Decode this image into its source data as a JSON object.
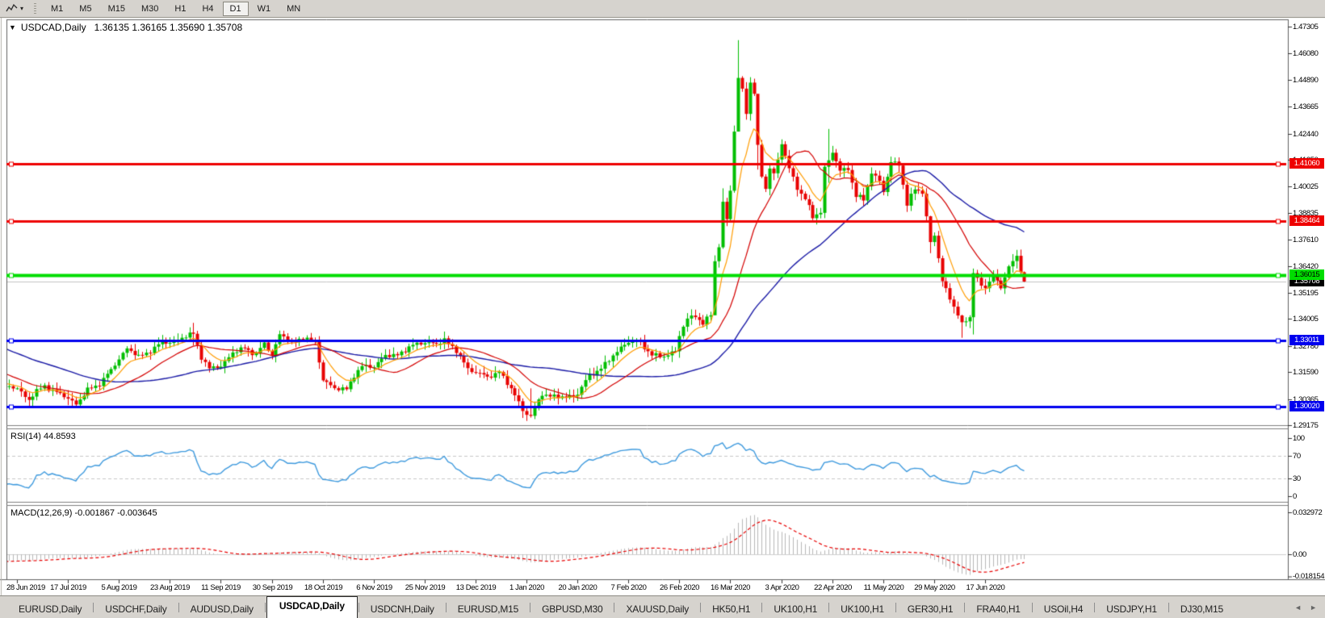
{
  "toolbar": {
    "dropdown_icon": "▾",
    "timeframes": [
      "M1",
      "M5",
      "M15",
      "M30",
      "H1",
      "H4",
      "D1",
      "W1",
      "MN"
    ],
    "active_timeframe": "D1"
  },
  "chart_header": {
    "collapse_icon": "▼",
    "symbol": "USDCAD,Daily",
    "ohlc": "1.36135 1.36165 1.35690 1.35708"
  },
  "price_axis": {
    "ticks": [
      "1.47305",
      "1.46080",
      "1.44890",
      "1.43665",
      "1.42440",
      "1.41250",
      "1.40025",
      "1.38835",
      "1.37610",
      "1.36420",
      "1.35195",
      "1.34005",
      "1.32780",
      "1.31590",
      "1.30365",
      "1.29175"
    ]
  },
  "x_axis": {
    "dates": [
      "28 Jun 2019",
      "17 Jul 2019",
      "5 Aug 2019",
      "23 Aug 2019",
      "11 Sep 2019",
      "30 Sep 2019",
      "18 Oct 2019",
      "6 Nov 2019",
      "25 Nov 2019",
      "13 Dec 2019",
      "1 Jan 2020",
      "20 Jan 2020",
      "7 Feb 2020",
      "26 Feb 2020",
      "16 Mar 2020",
      "3 Apr 2020",
      "22 Apr 2020",
      "11 May 2020",
      "29 May 2020",
      "17 Jun 2020"
    ]
  },
  "tabs": {
    "items": [
      {
        "label": "EURUSD,Daily",
        "active": false
      },
      {
        "label": "USDCHF,Daily",
        "active": false
      },
      {
        "label": "AUDUSD,Daily",
        "active": false
      },
      {
        "label": "USDCAD,Daily",
        "active": true
      },
      {
        "label": "USDCNH,Daily",
        "active": false
      },
      {
        "label": "EURUSD,M15",
        "active": false
      },
      {
        "label": "GBPUSD,M30",
        "active": false
      },
      {
        "label": "XAUUSD,Daily",
        "active": false
      },
      {
        "label": "HK50,H1",
        "active": false
      },
      {
        "label": "UK100,H1",
        "active": false
      },
      {
        "label": "UK100,H1",
        "active": false
      },
      {
        "label": "GER30,H1",
        "active": false
      },
      {
        "label": "FRA40,H1",
        "active": false
      },
      {
        "label": "USOil,H4",
        "active": false
      },
      {
        "label": "USDJPY,H1",
        "active": false
      },
      {
        "label": "DJ30,M15",
        "active": false
      }
    ],
    "nav_left": "◄",
    "nav_right": "►"
  },
  "chart_data": {
    "type": "candlestick",
    "symbol": "USDCAD",
    "timeframe": "Daily",
    "current_bar": {
      "open": 1.36135,
      "high": 1.36165,
      "low": 1.3569,
      "close": 1.35708
    },
    "ylim": [
      1.29175,
      1.47305
    ],
    "x_ticks": {
      "first_index": 0,
      "step": 13
    },
    "bull_color": "#00BE00",
    "bear_color": "#E80000",
    "anchors": [
      [
        -55,
        1.356
      ],
      [
        -50,
        1.3425
      ],
      [
        -44,
        1.337
      ],
      [
        -38,
        1.334
      ],
      [
        -33,
        1.333
      ],
      [
        -26,
        1.3265
      ],
      [
        -18,
        1.32
      ],
      [
        -10,
        1.312
      ],
      [
        -5,
        1.3095
      ],
      [
        0,
        1.3085
      ],
      [
        3,
        1.3035
      ],
      [
        7,
        1.31
      ],
      [
        10,
        1.3065
      ],
      [
        13,
        1.304
      ],
      [
        15,
        1.3016
      ],
      [
        18,
        1.3075
      ],
      [
        21,
        1.311
      ],
      [
        24,
        1.3165
      ],
      [
        26,
        1.322
      ],
      [
        28,
        1.327
      ],
      [
        31,
        1.3225
      ],
      [
        34,
        1.326
      ],
      [
        37,
        1.329
      ],
      [
        40,
        1.33
      ],
      [
        43,
        1.332
      ],
      [
        45,
        1.3335
      ],
      [
        47,
        1.323
      ],
      [
        49,
        1.317
      ],
      [
        52,
        1.319
      ],
      [
        55,
        1.3245
      ],
      [
        58,
        1.327
      ],
      [
        61,
        1.324
      ],
      [
        63,
        1.3285
      ],
      [
        65,
        1.324
      ],
      [
        67,
        1.333
      ],
      [
        70,
        1.329
      ],
      [
        73,
        1.332
      ],
      [
        76,
        1.329
      ],
      [
        78,
        1.313
      ],
      [
        81,
        1.308
      ],
      [
        84,
        1.3085
      ],
      [
        86,
        1.3145
      ],
      [
        88,
        1.318
      ],
      [
        91,
        1.319
      ],
      [
        94,
        1.323
      ],
      [
        97,
        1.324
      ],
      [
        100,
        1.327
      ],
      [
        104,
        1.33
      ],
      [
        107,
        1.328
      ],
      [
        109,
        1.331
      ],
      [
        112,
        1.3255
      ],
      [
        115,
        1.317
      ],
      [
        117,
        1.3165
      ],
      [
        120,
        1.313
      ],
      [
        123,
        1.3165
      ],
      [
        126,
        1.308
      ],
      [
        129,
        1.299
      ],
      [
        131,
        1.2958
      ],
      [
        134,
        1.306
      ],
      [
        137,
        1.305
      ],
      [
        140,
        1.304
      ],
      [
        143,
        1.3065
      ],
      [
        146,
        1.314
      ],
      [
        149,
        1.318
      ],
      [
        152,
        1.323
      ],
      [
        155,
        1.329
      ],
      [
        156,
        1.33
      ],
      [
        159,
        1.329
      ],
      [
        162,
        1.324
      ],
      [
        165,
        1.3225
      ],
      [
        168,
        1.326
      ],
      [
        169,
        1.333
      ],
      [
        171,
        1.3395
      ],
      [
        173,
        1.342
      ],
      [
        175,
        1.338
      ],
      [
        177,
        1.342
      ],
      [
        178,
        1.366
      ],
      [
        179,
        1.373
      ],
      [
        180,
        1.393
      ],
      [
        181,
        1.386
      ],
      [
        182,
        1.399
      ],
      [
        183,
        1.425
      ],
      [
        184,
        1.449
      ],
      [
        185,
        1.444
      ],
      [
        186,
        1.4345
      ],
      [
        187,
        1.448
      ],
      [
        188,
        1.443
      ],
      [
        189,
        1.418
      ],
      [
        190,
        1.405
      ],
      [
        191,
        1.399
      ],
      [
        192,
        1.409
      ],
      [
        193,
        1.406
      ],
      [
        194,
        1.413
      ],
      [
        195,
        1.42
      ],
      [
        197,
        1.408
      ],
      [
        199,
        1.4
      ],
      [
        201,
        1.395
      ],
      [
        203,
        1.386
      ],
      [
        205,
        1.389
      ],
      [
        206,
        1.409
      ],
      [
        208,
        1.416
      ],
      [
        210,
        1.407
      ],
      [
        212,
        1.409
      ],
      [
        214,
        1.396
      ],
      [
        216,
        1.394
      ],
      [
        218,
        1.407
      ],
      [
        220,
        1.403
      ],
      [
        221,
        1.398
      ],
      [
        223,
        1.411
      ],
      [
        225,
        1.411
      ],
      [
        227,
        1.392
      ],
      [
        229,
        1.399
      ],
      [
        231,
        1.398
      ],
      [
        233,
        1.375
      ],
      [
        234,
        1.378
      ],
      [
        236,
        1.357
      ],
      [
        238,
        1.35
      ],
      [
        240,
        1.342
      ],
      [
        241,
        1.337
      ],
      [
        243,
        1.341
      ],
      [
        244,
        1.362
      ],
      [
        246,
        1.355
      ],
      [
        247,
        1.354
      ],
      [
        249,
        1.36
      ],
      [
        251,
        1.354
      ],
      [
        253,
        1.364
      ],
      [
        255,
        1.3688
      ],
      [
        256,
        1.36135
      ],
      [
        257,
        1.35708
      ]
    ],
    "wick_overrides": {
      "45": [
        1.3383,
        1.328
      ],
      "67": [
        1.3348,
        1.327
      ],
      "131": [
        1.3085,
        1.2952
      ],
      "178": [
        1.369,
        1.342
      ],
      "180": [
        1.3995,
        1.372
      ],
      "184": [
        1.4669,
        1.43
      ],
      "189": [
        1.435,
        1.408
      ],
      "207": [
        1.4265,
        1.402
      ],
      "233": [
        1.387,
        1.37
      ],
      "241": [
        1.342,
        1.3315
      ],
      "244": [
        1.363,
        1.333
      ],
      "255": [
        1.3715,
        1.363
      ],
      "257": [
        1.36165,
        1.3569
      ]
    },
    "overlays": [
      {
        "name": "ma-fast",
        "method": "ema",
        "period": 8,
        "color": "#FF9C00"
      },
      {
        "name": "ma-mid",
        "method": "sma",
        "period": 20,
        "color": "#D40000"
      },
      {
        "name": "ma-slow",
        "method": "sma",
        "period": 50,
        "color": "#1A1AA6"
      }
    ],
    "hlines": [
      {
        "value": 1.4106,
        "label": "1.41060",
        "color": "#EE0000",
        "text_color": "#FFFFFF",
        "width": 3
      },
      {
        "value": 1.38464,
        "label": "1.38464",
        "color": "#EE0000",
        "text_color": "#FFFFFF",
        "width": 3
      },
      {
        "value": 1.36015,
        "label": "1.36015",
        "color": "#00DD00",
        "text_color": "#000000",
        "width": 4
      },
      {
        "value": 1.33011,
        "label": "1.33011",
        "color": "#0000EE",
        "text_color": "#FFFFFF",
        "width": 3
      },
      {
        "value": 1.3002,
        "label": "1.30020",
        "color": "#0000EE",
        "text_color": "#FFFFFF",
        "width": 3
      }
    ],
    "current_price": {
      "value": 1.35708,
      "label": "1.35708",
      "line_color": "#C4C4C4",
      "box_color": "#000000",
      "text_color": "#FFFFFF"
    },
    "rsi": {
      "title": "RSI(14) 44.8593",
      "period": 14,
      "last_value": 44.8593,
      "line_color": "#3E9ADE",
      "levels": [
        70,
        30
      ],
      "axis_labels": [
        {
          "value": 100,
          "label": "100"
        },
        {
          "value": 70,
          "label": "70"
        },
        {
          "value": 30,
          "label": "30"
        },
        {
          "value": 0,
          "label": "0"
        }
      ]
    },
    "macd": {
      "title": "MACD(12,26,9) -0.001867 -0.003645",
      "params": [
        12,
        26,
        9
      ],
      "main_last": -0.001867,
      "signal_last": -0.003645,
      "hist_color": "#B8B8B8",
      "signal_color": "#E80000",
      "axis_labels": [
        {
          "value": 0.032972,
          "label": "0.032972"
        },
        {
          "value": 0,
          "label": "0.00"
        },
        {
          "value": -0.018154,
          "label": "-0.018154"
        }
      ]
    }
  }
}
